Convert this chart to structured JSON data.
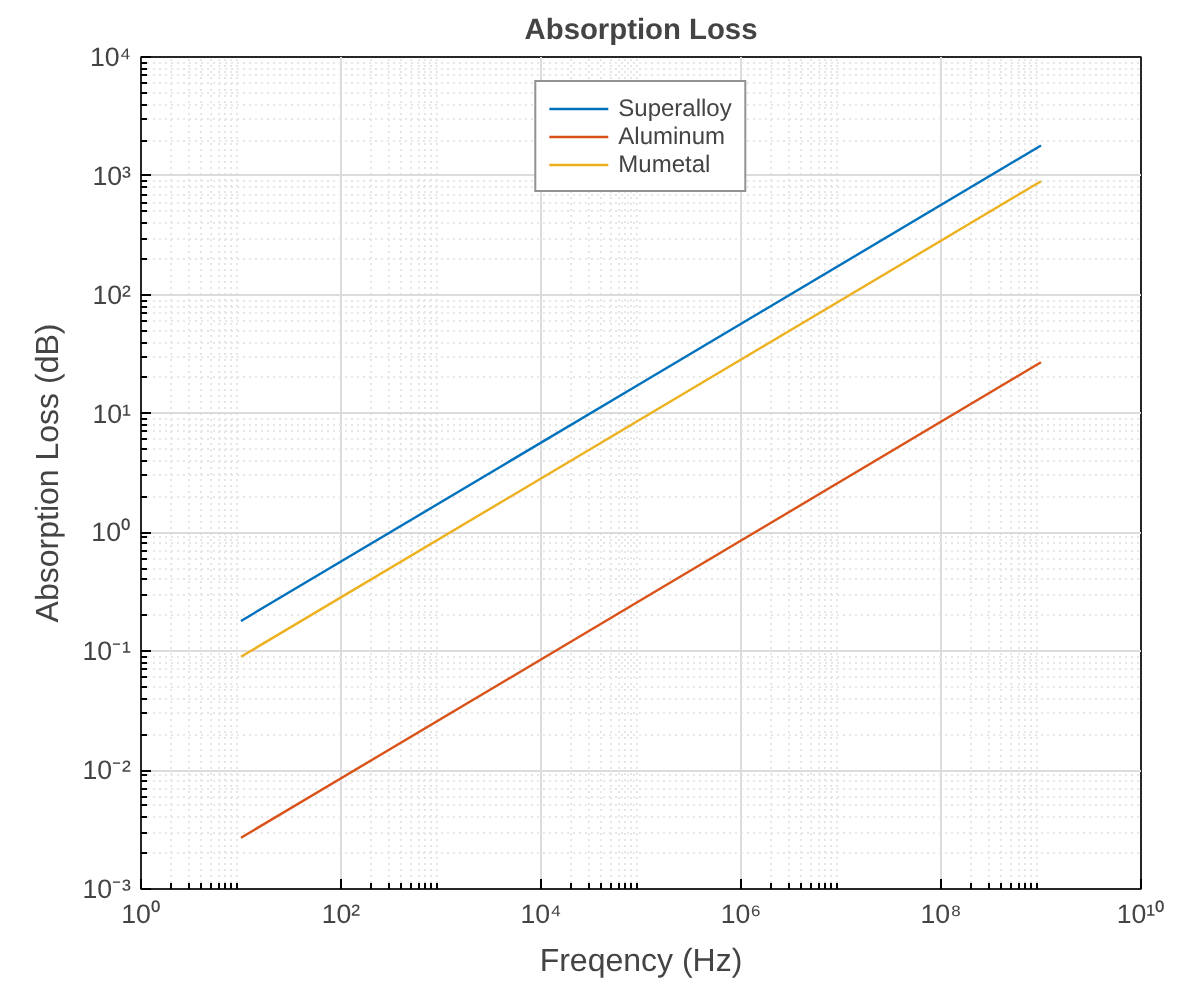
{
  "chart_data": {
    "type": "line",
    "title": "Absorption Loss",
    "xlabel": "Freqency (Hz)",
    "ylabel": "Absorption Loss (dB)",
    "log": "xy",
    "grid": true,
    "legend": "top",
    "line_style": "solid",
    "marker": "none",
    "xlim": [
      1,
      10000000000
    ],
    "ylim": [
      0.001,
      10000
    ],
    "xticks": [
      {
        "value": 1,
        "label": "10⁰"
      },
      {
        "value": 100,
        "label": "10²"
      },
      {
        "value": 10000,
        "label": "10⁴"
      },
      {
        "value": 1000000,
        "label": "10⁶"
      },
      {
        "value": 100000000,
        "label": "10⁸"
      },
      {
        "value": 10000000000,
        "label": "10¹⁰"
      }
    ],
    "yticks": [
      {
        "value": 0.001,
        "label": "10⁻³"
      },
      {
        "value": 0.01,
        "label": "10⁻²"
      },
      {
        "value": 0.1,
        "label": "10⁻¹"
      },
      {
        "value": 1,
        "label": "10⁰"
      },
      {
        "value": 10,
        "label": "10¹"
      },
      {
        "value": 100,
        "label": "10²"
      },
      {
        "value": 1000,
        "label": "10³"
      },
      {
        "value": 10000,
        "label": "10⁴"
      }
    ],
    "x": [
      10,
      100000,
      1000000000
    ],
    "series": [
      {
        "name": "Superalloy",
        "color": "#0072bd",
        "values": [
          0.18,
          18,
          1800
        ]
      },
      {
        "name": "Aluminum",
        "color": "#d95319",
        "values": [
          0.0027,
          0.27,
          27
        ]
      },
      {
        "name": "Mumetal",
        "color": "#edb120",
        "values": [
          0.09,
          9,
          900
        ]
      }
    ]
  }
}
